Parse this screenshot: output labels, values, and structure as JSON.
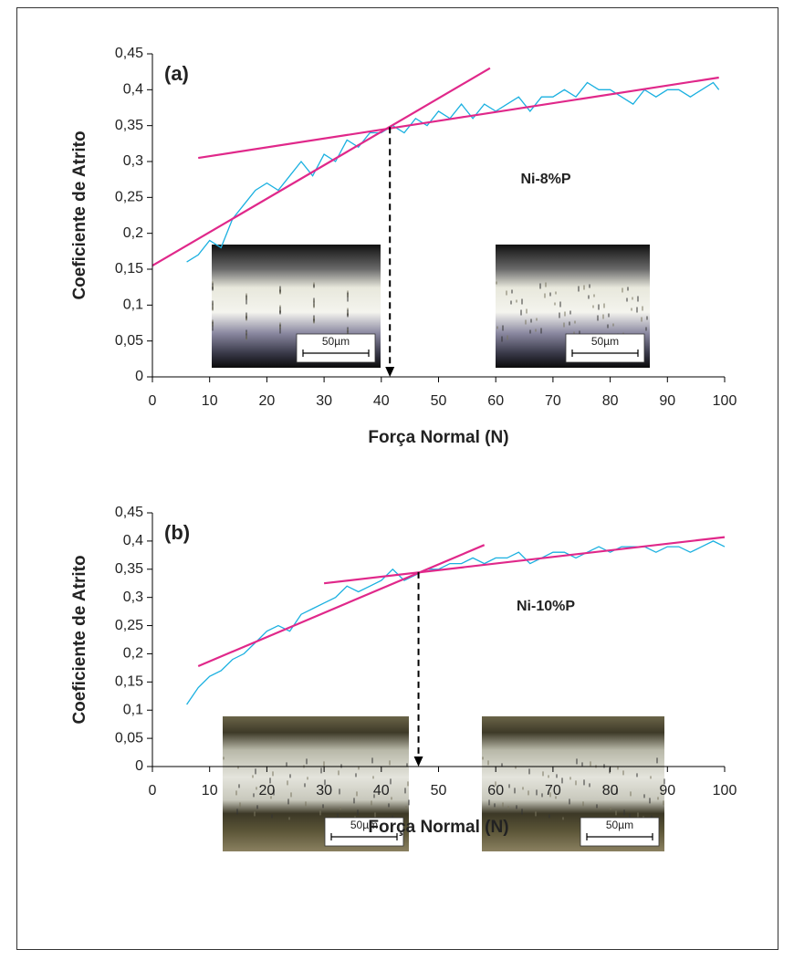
{
  "chart_data": [
    {
      "type": "line",
      "panel_label": "(a)",
      "annotation": "Ni-8%P",
      "x_label": "Força Normal (N)",
      "y_label": "Coeficiente de Atrito",
      "xlim": [
        0,
        100
      ],
      "xticks": [
        0,
        10,
        20,
        30,
        40,
        50,
        60,
        70,
        80,
        90,
        100
      ],
      "ylim": [
        0,
        0.45
      ],
      "yticks": [
        0,
        {
          "value": 0.05,
          "label": "0,05"
        },
        {
          "value": 0.1,
          "label": "0,1"
        },
        {
          "value": 0.15,
          "label": "0,15"
        },
        {
          "value": 0.2,
          "label": "0,2"
        },
        {
          "value": 0.25,
          "label": "0,25"
        },
        {
          "value": 0.3,
          "label": "0,3"
        },
        {
          "value": 0.35,
          "label": "0,35"
        },
        {
          "value": 0.4,
          "label": "0,4"
        },
        {
          "value": 0.45,
          "label": "0,45"
        }
      ],
      "series": [
        {
          "color": "#1ab0e0",
          "x": [
            6,
            8,
            10,
            12,
            14,
            16,
            18,
            20,
            22,
            24,
            26,
            28,
            30,
            32,
            34,
            36,
            38,
            40,
            42,
            44,
            46,
            48,
            50,
            52,
            54,
            56,
            58,
            60,
            62,
            64,
            66,
            68,
            70,
            72,
            74,
            76,
            78,
            80,
            82,
            84,
            86,
            88,
            90,
            92,
            94,
            96,
            98,
            99
          ],
          "values": [
            0.16,
            0.17,
            0.19,
            0.18,
            0.22,
            0.24,
            0.26,
            0.27,
            0.26,
            0.28,
            0.3,
            0.28,
            0.31,
            0.3,
            0.33,
            0.32,
            0.34,
            0.34,
            0.35,
            0.34,
            0.36,
            0.35,
            0.37,
            0.36,
            0.38,
            0.36,
            0.38,
            0.37,
            0.38,
            0.39,
            0.37,
            0.39,
            0.39,
            0.4,
            0.39,
            0.41,
            0.4,
            0.4,
            0.39,
            0.38,
            0.4,
            0.39,
            0.4,
            0.4,
            0.39,
            0.4,
            0.41,
            0.4
          ]
        },
        {
          "color": "#e0288a",
          "x": [
            0,
            59
          ],
          "values": [
            0.155,
            0.43
          ]
        },
        {
          "color": "#e0288a",
          "x": [
            8,
            99
          ],
          "values": [
            0.305,
            0.417
          ]
        }
      ],
      "arrow": {
        "x": 41.5,
        "y": [
          0.348,
          0
        ]
      },
      "insets": [
        {
          "label": "50µm"
        },
        {
          "label": "50µm"
        }
      ]
    },
    {
      "type": "line",
      "panel_label": "(b)",
      "annotation": "Ni-10%P",
      "x_label": "Força Normal (N)",
      "y_label": "Coeficiente de Atrito",
      "xlim": [
        0,
        100
      ],
      "xticks": [
        0,
        10,
        20,
        30,
        40,
        50,
        60,
        70,
        80,
        90,
        100
      ],
      "ylim": [
        0,
        0.45
      ],
      "yticks": [
        0,
        {
          "value": 0.05,
          "label": "0,05"
        },
        {
          "value": 0.1,
          "label": "0,1"
        },
        {
          "value": 0.15,
          "label": "0,15"
        },
        {
          "value": 0.2,
          "label": "0,2"
        },
        {
          "value": 0.25,
          "label": "0,25"
        },
        {
          "value": 0.3,
          "label": "0,3"
        },
        {
          "value": 0.35,
          "label": "0,35"
        },
        {
          "value": 0.4,
          "label": "0,4"
        },
        {
          "value": 0.45,
          "label": "0,45"
        }
      ],
      "series": [
        {
          "color": "#1ab0e0",
          "x": [
            6,
            8,
            10,
            12,
            14,
            16,
            18,
            20,
            22,
            24,
            26,
            28,
            30,
            32,
            34,
            36,
            38,
            40,
            42,
            44,
            46,
            48,
            50,
            52,
            54,
            56,
            58,
            60,
            62,
            64,
            66,
            68,
            70,
            72,
            74,
            76,
            78,
            80,
            82,
            84,
            86,
            88,
            90,
            92,
            94,
            96,
            98,
            100
          ],
          "values": [
            0.11,
            0.14,
            0.16,
            0.17,
            0.19,
            0.2,
            0.22,
            0.24,
            0.25,
            0.24,
            0.27,
            0.28,
            0.29,
            0.3,
            0.32,
            0.31,
            0.32,
            0.33,
            0.35,
            0.33,
            0.34,
            0.35,
            0.35,
            0.36,
            0.36,
            0.37,
            0.36,
            0.37,
            0.37,
            0.38,
            0.36,
            0.37,
            0.38,
            0.38,
            0.37,
            0.38,
            0.39,
            0.38,
            0.39,
            0.39,
            0.39,
            0.38,
            0.39,
            0.39,
            0.38,
            0.39,
            0.4,
            0.39
          ]
        },
        {
          "color": "#e0288a",
          "x": [
            8,
            58
          ],
          "values": [
            0.178,
            0.393
          ]
        },
        {
          "color": "#e0288a",
          "x": [
            30,
            100
          ],
          "values": [
            0.325,
            0.407
          ]
        }
      ],
      "arrow": {
        "x": 46.5,
        "y": [
          0.345,
          0
        ]
      },
      "insets": [
        {
          "label": "50µm"
        },
        {
          "label": "50µm"
        }
      ]
    }
  ]
}
